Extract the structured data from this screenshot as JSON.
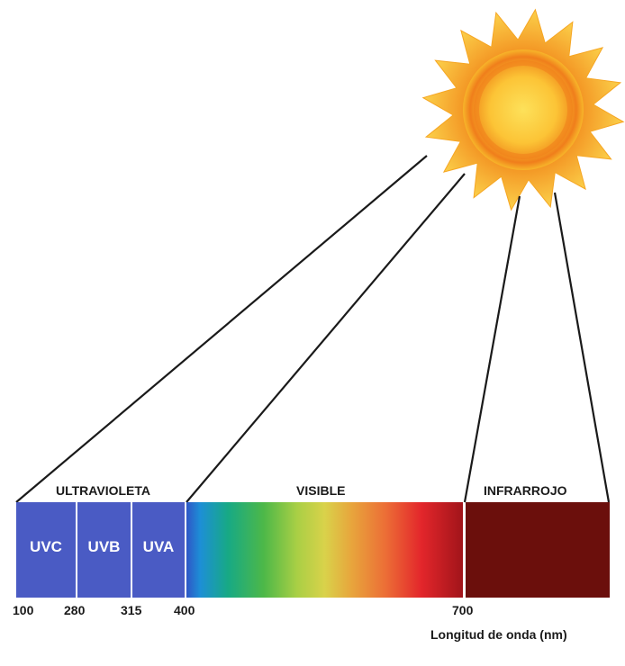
{
  "regions": {
    "ultraviolet": "ULTRAVIOLETA",
    "visible": "VISIBLE",
    "infrared": "INFRARROJO"
  },
  "uv_bands": [
    "UVC",
    "UVB",
    "UVA"
  ],
  "wavelength_ticks": [
    "100",
    "280",
    "315",
    "400",
    "700"
  ],
  "axis_title": "Longitud de onda (nm)",
  "colors": {
    "uv_band": "#4a5bc4",
    "infrared": "#6b0f0c",
    "sun_ray": "#f7b52a",
    "sun_core": "#f28a1c",
    "lines": "#1a1a1a"
  }
}
